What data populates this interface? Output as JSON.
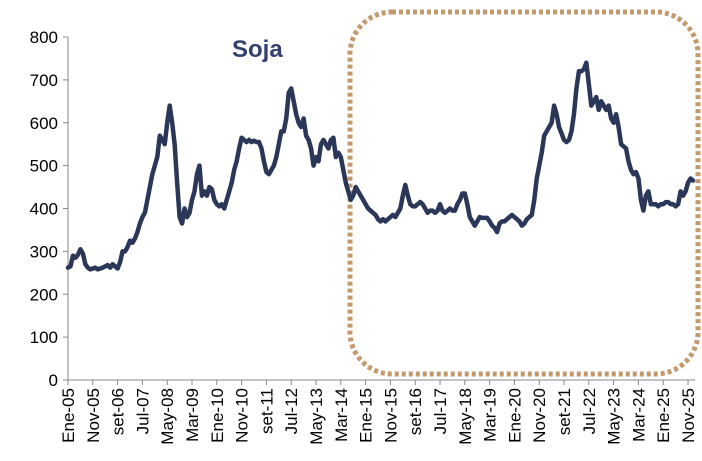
{
  "chart_data": {
    "type": "line",
    "title": "Soja",
    "categories": [
      "Ene-05",
      null,
      null,
      null,
      null,
      null,
      null,
      null,
      null,
      null,
      "Nov-05",
      null,
      null,
      null,
      null,
      null,
      null,
      null,
      null,
      null,
      "set-06",
      null,
      null,
      null,
      null,
      null,
      null,
      null,
      null,
      null,
      "Jul-07",
      null,
      null,
      null,
      null,
      null,
      null,
      null,
      null,
      null,
      "May-08",
      null,
      null,
      null,
      null,
      null,
      null,
      null,
      null,
      null,
      "Mar-09",
      null,
      null,
      null,
      null,
      null,
      null,
      null,
      null,
      null,
      "Ene-10",
      null,
      null,
      null,
      null,
      null,
      null,
      null,
      null,
      null,
      "Nov-10",
      null,
      null,
      null,
      null,
      null,
      null,
      null,
      null,
      null,
      "set-11",
      null,
      null,
      null,
      null,
      null,
      null,
      null,
      null,
      null,
      "Jul-12",
      null,
      null,
      null,
      null,
      null,
      null,
      null,
      null,
      null,
      "May-13",
      null,
      null,
      null,
      null,
      null,
      null,
      null,
      null,
      null,
      "Mar-14",
      null,
      null,
      null,
      null,
      null,
      null,
      null,
      null,
      null,
      "Ene-15",
      null,
      null,
      null,
      null,
      null,
      null,
      null,
      null,
      null,
      "Nov-15",
      null,
      null,
      null,
      null,
      null,
      null,
      null,
      null,
      null,
      "set-16",
      null,
      null,
      null,
      null,
      null,
      null,
      null,
      null,
      null,
      "Jul-17",
      null,
      null,
      null,
      null,
      null,
      null,
      null,
      null,
      null,
      "May-18",
      null,
      null,
      null,
      null,
      null,
      null,
      null,
      null,
      null,
      "Mar-19",
      null,
      null,
      null,
      null,
      null,
      null,
      null,
      null,
      null,
      "Ene-20",
      null,
      null,
      null,
      null,
      null,
      null,
      null,
      null,
      null,
      "Nov-20",
      null,
      null,
      null,
      null,
      null,
      null,
      null,
      null,
      null,
      "set-21",
      null,
      null,
      null,
      null,
      null,
      null,
      null,
      null,
      null,
      "Jul-22",
      null,
      null,
      null,
      null,
      null,
      null,
      null,
      null,
      null,
      "May-23",
      null,
      null,
      null,
      null,
      null,
      null,
      null,
      null,
      null,
      "Mar-24",
      null,
      null,
      null,
      null,
      null,
      null,
      null,
      null,
      null,
      "Ene-25",
      null,
      null,
      null,
      null,
      null,
      null,
      null,
      null,
      null,
      "Nov-25",
      null,
      null
    ],
    "values": [
      262,
      265,
      290,
      285,
      292,
      305,
      295,
      270,
      262,
      258,
      260,
      262,
      258,
      260,
      262,
      265,
      268,
      262,
      270,
      265,
      260,
      275,
      300,
      300,
      310,
      325,
      320,
      330,
      345,
      365,
      380,
      390,
      420,
      450,
      480,
      500,
      520,
      570,
      560,
      550,
      600,
      640,
      600,
      550,
      460,
      380,
      365,
      400,
      380,
      390,
      420,
      440,
      480,
      500,
      430,
      440,
      430,
      450,
      445,
      420,
      410,
      405,
      410,
      400,
      420,
      440,
      460,
      490,
      510,
      540,
      565,
      560,
      555,
      560,
      555,
      558,
      555,
      555,
      540,
      510,
      485,
      480,
      490,
      500,
      520,
      550,
      580,
      580,
      610,
      670,
      680,
      650,
      620,
      600,
      590,
      610,
      570,
      560,
      540,
      500,
      520,
      510,
      550,
      560,
      550,
      540,
      560,
      565,
      520,
      530,
      520,
      490,
      460,
      440,
      420,
      430,
      450,
      440,
      430,
      420,
      410,
      400,
      395,
      390,
      385,
      375,
      370,
      375,
      370,
      375,
      380,
      385,
      380,
      390,
      400,
      430,
      455,
      430,
      410,
      405,
      405,
      410,
      415,
      410,
      400,
      390,
      395,
      395,
      390,
      395,
      410,
      395,
      390,
      395,
      400,
      395,
      395,
      410,
      420,
      435,
      435,
      410,
      380,
      370,
      360,
      370,
      380,
      378,
      378,
      378,
      370,
      360,
      355,
      345,
      365,
      370,
      370,
      375,
      380,
      385,
      380,
      375,
      370,
      360,
      365,
      375,
      380,
      385,
      420,
      470,
      500,
      530,
      570,
      580,
      590,
      600,
      640,
      620,
      590,
      575,
      560,
      555,
      560,
      580,
      620,
      680,
      720,
      720,
      725,
      740,
      690,
      640,
      650,
      660,
      630,
      650,
      640,
      630,
      640,
      610,
      600,
      620,
      590,
      550,
      545,
      540,
      510,
      490,
      480,
      485,
      470,
      420,
      395,
      430,
      440,
      410,
      410,
      410,
      405,
      410,
      410,
      415,
      415,
      410,
      410,
      405,
      410,
      440,
      430,
      440,
      460,
      470,
      465
    ],
    "color": "#2a3758",
    "ylim": [
      0,
      800
    ],
    "yticks": [
      0,
      100,
      200,
      300,
      400,
      500,
      600,
      700,
      800
    ],
    "grid": false
  }
}
